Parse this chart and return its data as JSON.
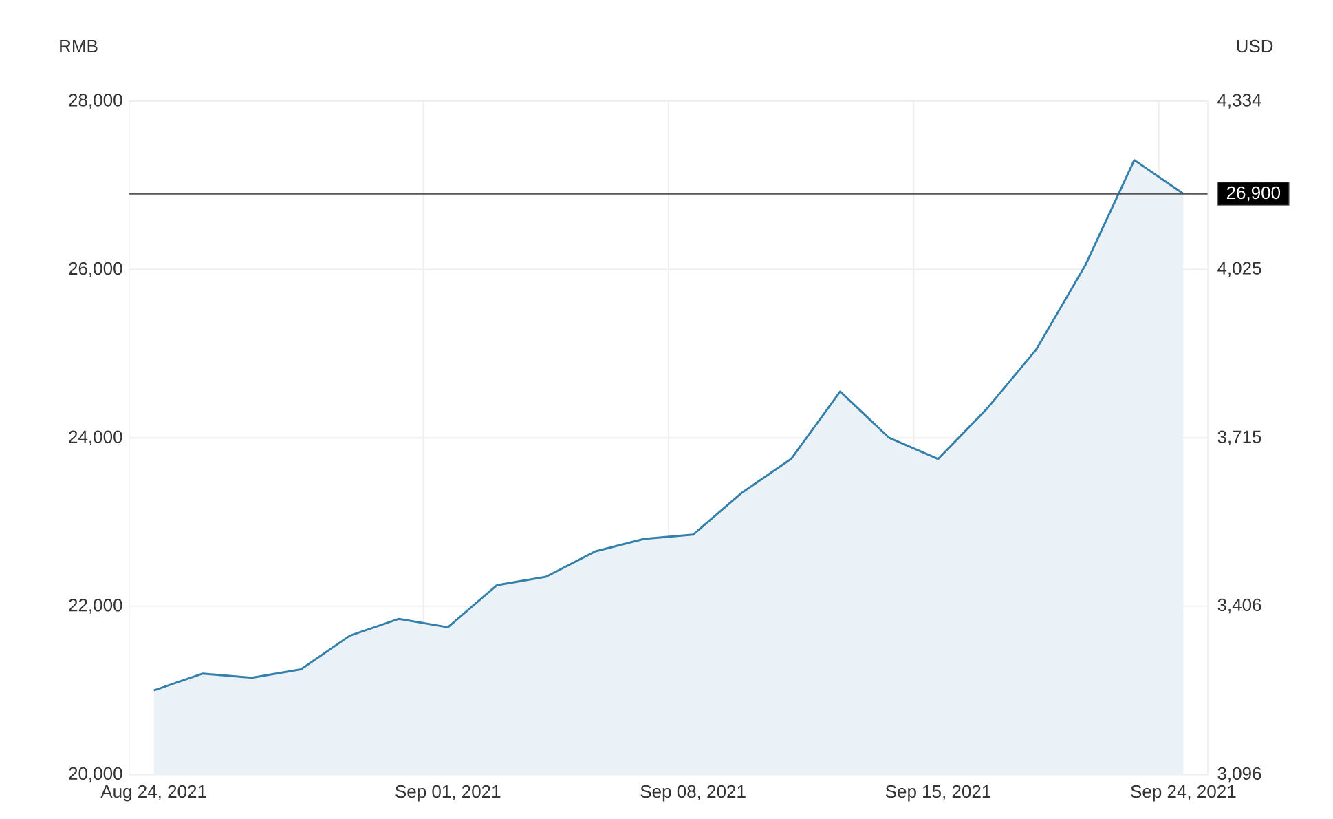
{
  "chart_data": {
    "type": "area",
    "ylabel": "RMB",
    "y2label": "USD",
    "categories": [
      "Aug 24, 2021",
      null,
      null,
      null,
      null,
      null,
      "Sep 01, 2021",
      null,
      null,
      null,
      null,
      "Sep 08, 2021",
      null,
      null,
      null,
      null,
      "Sep 15, 2021",
      null,
      null,
      null,
      null,
      "Sep 24, 2021"
    ],
    "series": [
      {
        "color": "#3380ac",
        "values": [
          21000,
          21200,
          21150,
          21250,
          21650,
          21850,
          21750,
          22250,
          22350,
          22650,
          22800,
          22850,
          23350,
          23750,
          24550,
          24000,
          23750,
          24350,
          25050,
          26050,
          27300,
          26900
        ]
      }
    ],
    "ylim": [
      20000,
      28000
    ],
    "yticks": [
      {
        "value": 20000,
        "label": "20,000"
      },
      {
        "value": 22000,
        "label": "22,000"
      },
      {
        "value": 24000,
        "label": "24,000"
      },
      {
        "value": 26000,
        "label": "26,000"
      },
      {
        "value": 28000,
        "label": "28,000"
      }
    ],
    "y2lim": [
      3096,
      4334
    ],
    "y2ticks": [
      {
        "value": 3096,
        "label": "3,096"
      },
      {
        "value": 3406,
        "label": "3,406"
      },
      {
        "value": 3715,
        "label": "3,715"
      },
      {
        "value": 4025,
        "label": "4,025"
      },
      {
        "value": 4334,
        "label": "4,334"
      }
    ],
    "ref_lines": [
      {
        "axis": "y",
        "value": 26900,
        "label": "26,900",
        "color": "#555555"
      }
    ],
    "grid": true
  }
}
